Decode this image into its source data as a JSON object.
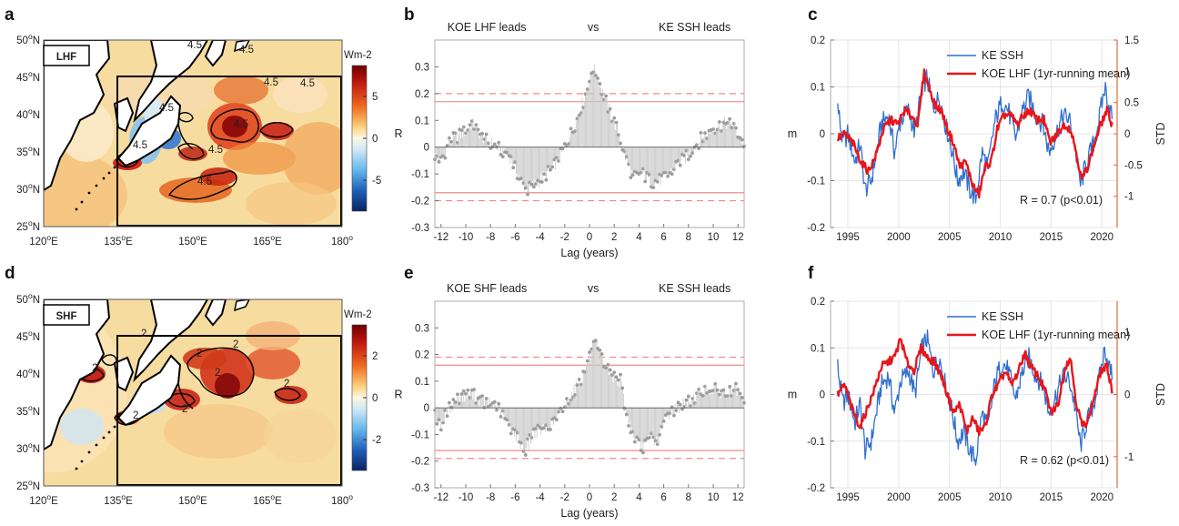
{
  "colors": {
    "ssh": "#2f6fcf",
    "flux": "#e8161b",
    "std_axis": "#e0673a",
    "bar": "#c8c8c8",
    "dot": "#9d9d9d",
    "sig": "#f08a8a"
  },
  "panels": {
    "a": "a",
    "b": "b",
    "c": "c",
    "d": "d",
    "e": "e",
    "f": "f"
  },
  "maps": [
    {
      "label": "LHF",
      "unit": "Wm-2",
      "colorbar_ticks": [
        "5",
        "0",
        "-5"
      ],
      "lat_ticks": [
        "50",
        "45",
        "40",
        "35",
        "30",
        "25"
      ],
      "lat_suffix": "N",
      "lon_ticks": [
        "120",
        "135",
        "150",
        "165",
        "180"
      ],
      "lon_suffix": "E",
      "lon_last": "180",
      "contour_labels": [
        "4.5",
        "4.5",
        "4.5",
        "4.5",
        "4.5",
        "4.5",
        "4.5",
        "4.5",
        "4.5"
      ]
    },
    {
      "label": "SHF",
      "unit": "Wm-2",
      "colorbar_ticks": [
        "2",
        "0",
        "-2"
      ],
      "lat_ticks": [
        "50",
        "45",
        "40",
        "35",
        "30",
        "25"
      ],
      "lat_suffix": "N",
      "lon_ticks": [
        "120",
        "135",
        "150",
        "165",
        "180"
      ],
      "lon_suffix": "E",
      "lon_last": "180",
      "contour_labels": [
        "2",
        "2",
        "2",
        "2",
        "2",
        "2",
        "2",
        "2"
      ]
    }
  ],
  "chart_data": [
    {
      "type": "bar",
      "panel": "b",
      "title_left": "KOE LHF leads",
      "title_mid": "vs",
      "title_right": "KE SSH leads",
      "xlabel": "Lag (years)",
      "ylabel": "R",
      "xlim": [
        -12.5,
        12.5
      ],
      "ylim": [
        -0.3,
        0.4
      ],
      "xticks": [
        -12,
        -10,
        -8,
        -6,
        -4,
        -2,
        0,
        2,
        4,
        6,
        8,
        10,
        12
      ],
      "yticks": [
        -0.3,
        -0.2,
        -0.1,
        0,
        0.1,
        0.2,
        0.3
      ],
      "sig_solid": 0.17,
      "sig_dashed": 0.2,
      "lag_knots": [
        [
          -12.5,
          -0.03
        ],
        [
          -12,
          -0.05
        ],
        [
          -11.3,
          0.02
        ],
        [
          -10,
          0.06
        ],
        [
          -9.5,
          0.09
        ],
        [
          -8.7,
          0.04
        ],
        [
          -7.5,
          0.0
        ],
        [
          -6.5,
          -0.03
        ],
        [
          -5.5,
          -0.13
        ],
        [
          -5,
          -0.16
        ],
        [
          -4.2,
          -0.13
        ],
        [
          -3,
          -0.08
        ],
        [
          -2.2,
          -0.02
        ],
        [
          -1.2,
          0.08
        ],
        [
          -0.5,
          0.17
        ],
        [
          0.3,
          0.3
        ],
        [
          0.8,
          0.24
        ],
        [
          1.5,
          0.15
        ],
        [
          2.3,
          0.06
        ],
        [
          3,
          -0.05
        ],
        [
          3.5,
          -0.11
        ],
        [
          4.3,
          -0.1
        ],
        [
          5,
          -0.13
        ],
        [
          6,
          -0.12
        ],
        [
          7,
          -0.07
        ],
        [
          8,
          -0.03
        ],
        [
          9,
          0.03
        ],
        [
          10,
          0.07
        ],
        [
          11,
          0.09
        ],
        [
          11.7,
          0.08
        ],
        [
          12.5,
          0.0
        ]
      ]
    },
    {
      "type": "line",
      "panel": "c",
      "ylabel": "m",
      "y2label": "STD",
      "legend": [
        "KE SSH",
        "KOE LHF (1yr-running mean)"
      ],
      "annotation": "R = 0.7 (p<0.01)",
      "xlim": [
        1993.3,
        2021.5
      ],
      "ylim": [
        -0.2,
        0.2
      ],
      "y2lim": [
        -1.5,
        1.5
      ],
      "xticks": [
        1995,
        2000,
        2005,
        2010,
        2015,
        2020
      ],
      "yticks": [
        -0.2,
        -0.1,
        0,
        0.1,
        0.2
      ],
      "y2ticks": [
        -1,
        -0.5,
        0,
        0.5,
        1,
        1.5
      ],
      "ssh_knots": [
        [
          1994,
          0.06
        ],
        [
          1994.5,
          -0.02
        ],
        [
          1995,
          0.0
        ],
        [
          1995.7,
          -0.06
        ],
        [
          1996.2,
          -0.02
        ],
        [
          1996.7,
          -0.12
        ],
        [
          1997.3,
          -0.1
        ],
        [
          1997.8,
          -0.04
        ],
        [
          1998.3,
          0.02
        ],
        [
          1999,
          0.04
        ],
        [
          1999.6,
          -0.04
        ],
        [
          2000.2,
          0.03
        ],
        [
          2001,
          0.05
        ],
        [
          2001.6,
          0.0
        ],
        [
          2002.3,
          0.1
        ],
        [
          2002.8,
          0.12
        ],
        [
          2003.4,
          0.05
        ],
        [
          2004,
          0.08
        ],
        [
          2004.6,
          0.02
        ],
        [
          2005.2,
          -0.03
        ],
        [
          2005.8,
          -0.1
        ],
        [
          2006.4,
          -0.08
        ],
        [
          2007.0,
          -0.12
        ],
        [
          2007.6,
          -0.14
        ],
        [
          2008.2,
          -0.04
        ],
        [
          2008.8,
          -0.07
        ],
        [
          2009.5,
          0.03
        ],
        [
          2010.2,
          0.07
        ],
        [
          2010.8,
          0.05
        ],
        [
          2011.5,
          -0.01
        ],
        [
          2012.2,
          0.05
        ],
        [
          2012.8,
          0.08
        ],
        [
          2013.5,
          0.04
        ],
        [
          2014.2,
          0.02
        ],
        [
          2014.8,
          -0.04
        ],
        [
          2015.5,
          0.0
        ],
        [
          2016.2,
          0.04
        ],
        [
          2016.8,
          0.03
        ],
        [
          2017.3,
          -0.02
        ],
        [
          2017.9,
          -0.11
        ],
        [
          2018.5,
          -0.06
        ],
        [
          2019.2,
          -0.02
        ],
        [
          2019.8,
          0.04
        ],
        [
          2020.3,
          0.1
        ],
        [
          2020.7,
          0.06
        ],
        [
          2021.0,
          0.04
        ]
      ],
      "flux_knots": [
        [
          1994,
          -0.01
        ],
        [
          1994.7,
          0.0
        ],
        [
          1995.5,
          -0.02
        ],
        [
          1996.3,
          -0.06
        ],
        [
          1997.0,
          -0.08
        ],
        [
          1997.7,
          -0.05
        ],
        [
          1998.5,
          0.01
        ],
        [
          1999.2,
          0.03
        ],
        [
          1999.9,
          0.02
        ],
        [
          2000.6,
          0.05
        ],
        [
          2001.2,
          0.04
        ],
        [
          2001.9,
          0.02
        ],
        [
          2002.5,
          0.13
        ],
        [
          2003.0,
          0.1
        ],
        [
          2003.6,
          0.06
        ],
        [
          2004.2,
          0.05
        ],
        [
          2004.8,
          0.01
        ],
        [
          2005.4,
          -0.02
        ],
        [
          2006.0,
          -0.07
        ],
        [
          2006.6,
          -0.06
        ],
        [
          2007.3,
          -0.11
        ],
        [
          2007.9,
          -0.13
        ],
        [
          2008.5,
          -0.07
        ],
        [
          2009.1,
          -0.06
        ],
        [
          2009.7,
          0.01
        ],
        [
          2010.4,
          0.04
        ],
        [
          2011.0,
          0.04
        ],
        [
          2011.7,
          0.02
        ],
        [
          2012.3,
          0.04
        ],
        [
          2012.9,
          0.05
        ],
        [
          2013.6,
          0.03
        ],
        [
          2014.3,
          0.03
        ],
        [
          2014.9,
          -0.02
        ],
        [
          2015.6,
          0.0
        ],
        [
          2016.3,
          0.02
        ],
        [
          2016.9,
          0.01
        ],
        [
          2017.4,
          -0.03
        ],
        [
          2018.0,
          -0.1
        ],
        [
          2018.6,
          -0.07
        ],
        [
          2019.3,
          -0.02
        ],
        [
          2019.9,
          0.02
        ],
        [
          2020.5,
          0.05
        ],
        [
          2021.0,
          0.02
        ]
      ]
    },
    {
      "type": "bar",
      "panel": "e",
      "title_left": "KOE SHF leads",
      "title_mid": "vs",
      "title_right": "KE SSH leads",
      "xlabel": "Lag (years)",
      "ylabel": "R",
      "xlim": [
        -12.5,
        12.5
      ],
      "ylim": [
        -0.3,
        0.4
      ],
      "xticks": [
        -12,
        -10,
        -8,
        -6,
        -4,
        -2,
        0,
        2,
        4,
        6,
        8,
        10,
        12
      ],
      "yticks": [
        -0.3,
        -0.2,
        -0.1,
        0,
        0.1,
        0.2,
        0.3
      ],
      "sig_solid": 0.16,
      "sig_dashed": 0.19,
      "lag_knots": [
        [
          -12.5,
          -0.03
        ],
        [
          -12,
          -0.06
        ],
        [
          -11.3,
          0.0
        ],
        [
          -10.5,
          0.04
        ],
        [
          -9.5,
          0.05
        ],
        [
          -8.5,
          0.02
        ],
        [
          -7.5,
          0.01
        ],
        [
          -6.8,
          -0.04
        ],
        [
          -6,
          -0.1
        ],
        [
          -5.2,
          -0.16
        ],
        [
          -4.5,
          -0.09
        ],
        [
          -3.5,
          -0.08
        ],
        [
          -2.5,
          -0.03
        ],
        [
          -1.5,
          0.05
        ],
        [
          -0.5,
          0.12
        ],
        [
          0.4,
          0.24
        ],
        [
          1,
          0.18
        ],
        [
          1.8,
          0.12
        ],
        [
          2.5,
          0.1
        ],
        [
          3,
          -0.02
        ],
        [
          3.5,
          -0.1
        ],
        [
          4.2,
          -0.15
        ],
        [
          5,
          -0.11
        ],
        [
          5.5,
          -0.13
        ],
        [
          6.2,
          -0.03
        ],
        [
          7,
          0.0
        ],
        [
          8,
          0.02
        ],
        [
          9,
          0.06
        ],
        [
          10,
          0.07
        ],
        [
          11,
          0.05
        ],
        [
          11.8,
          0.07
        ],
        [
          12.5,
          0.01
        ]
      ]
    },
    {
      "type": "line",
      "panel": "f",
      "ylabel": "m",
      "y2label": "STD",
      "legend": [
        "KE SSH",
        "KOE LHF (1yr-running mean)"
      ],
      "annotation": "R = 0.62 (p<0.01)",
      "xlim": [
        1993.3,
        2021.5
      ],
      "ylim": [
        -0.2,
        0.2
      ],
      "y2lim": [
        -1.5,
        1.5
      ],
      "xticks": [
        1995,
        2000,
        2005,
        2010,
        2015,
        2020
      ],
      "yticks": [
        -0.2,
        -0.1,
        0,
        0.1,
        0.2
      ],
      "y2ticks": [
        -1,
        0,
        1
      ],
      "ssh_knots": [
        [
          1994,
          0.06
        ],
        [
          1994.5,
          -0.02
        ],
        [
          1995,
          0.0
        ],
        [
          1995.7,
          -0.06
        ],
        [
          1996.2,
          -0.02
        ],
        [
          1996.7,
          -0.12
        ],
        [
          1997.3,
          -0.1
        ],
        [
          1997.8,
          -0.04
        ],
        [
          1998.3,
          0.02
        ],
        [
          1999,
          0.04
        ],
        [
          1999.6,
          -0.04
        ],
        [
          2000.2,
          0.03
        ],
        [
          2001,
          0.05
        ],
        [
          2001.6,
          0.0
        ],
        [
          2002.3,
          0.1
        ],
        [
          2002.8,
          0.12
        ],
        [
          2003.4,
          0.05
        ],
        [
          2004,
          0.08
        ],
        [
          2004.6,
          0.02
        ],
        [
          2005.2,
          -0.03
        ],
        [
          2005.8,
          -0.1
        ],
        [
          2006.4,
          -0.08
        ],
        [
          2007.0,
          -0.12
        ],
        [
          2007.6,
          -0.14
        ],
        [
          2008.2,
          -0.04
        ],
        [
          2008.8,
          -0.07
        ],
        [
          2009.5,
          0.03
        ],
        [
          2010.2,
          0.07
        ],
        [
          2010.8,
          0.05
        ],
        [
          2011.5,
          -0.01
        ],
        [
          2012.2,
          0.05
        ],
        [
          2012.8,
          0.08
        ],
        [
          2013.5,
          0.04
        ],
        [
          2014.2,
          0.02
        ],
        [
          2014.8,
          -0.04
        ],
        [
          2015.5,
          0.0
        ],
        [
          2016.2,
          0.04
        ],
        [
          2016.8,
          0.03
        ],
        [
          2017.3,
          -0.02
        ],
        [
          2017.9,
          -0.11
        ],
        [
          2018.5,
          -0.06
        ],
        [
          2019.2,
          -0.02
        ],
        [
          2019.8,
          0.04
        ],
        [
          2020.3,
          0.1
        ],
        [
          2020.7,
          0.06
        ],
        [
          2021.0,
          0.04
        ]
      ],
      "flux_knots": [
        [
          1994,
          0.0
        ],
        [
          1994.7,
          0.02
        ],
        [
          1995.4,
          -0.03
        ],
        [
          1996.2,
          -0.07
        ],
        [
          1996.9,
          -0.03
        ],
        [
          1997.6,
          0.01
        ],
        [
          1998.3,
          0.06
        ],
        [
          1999.0,
          0.07
        ],
        [
          1999.6,
          0.08
        ],
        [
          2000.2,
          0.12
        ],
        [
          2000.8,
          0.07
        ],
        [
          2001.5,
          0.05
        ],
        [
          2002.2,
          0.1
        ],
        [
          2002.8,
          0.08
        ],
        [
          2003.5,
          0.07
        ],
        [
          2004.2,
          0.04
        ],
        [
          2004.8,
          0.0
        ],
        [
          2005.4,
          -0.04
        ],
        [
          2006.0,
          -0.02
        ],
        [
          2006.7,
          -0.08
        ],
        [
          2007.3,
          -0.05
        ],
        [
          2007.9,
          -0.08
        ],
        [
          2008.5,
          -0.07
        ],
        [
          2009.2,
          0.0
        ],
        [
          2009.8,
          0.02
        ],
        [
          2010.5,
          0.05
        ],
        [
          2011.1,
          0.02
        ],
        [
          2011.8,
          0.05
        ],
        [
          2012.4,
          0.09
        ],
        [
          2013.0,
          0.06
        ],
        [
          2013.7,
          0.04
        ],
        [
          2014.4,
          0.01
        ],
        [
          2015.0,
          -0.04
        ],
        [
          2015.7,
          -0.02
        ],
        [
          2016.4,
          0.06
        ],
        [
          2016.9,
          0.08
        ],
        [
          2017.5,
          -0.02
        ],
        [
          2018.1,
          -0.07
        ],
        [
          2018.7,
          -0.05
        ],
        [
          2019.3,
          0.0
        ],
        [
          2019.9,
          0.05
        ],
        [
          2020.5,
          0.06
        ],
        [
          2021.0,
          0.01
        ]
      ]
    }
  ]
}
